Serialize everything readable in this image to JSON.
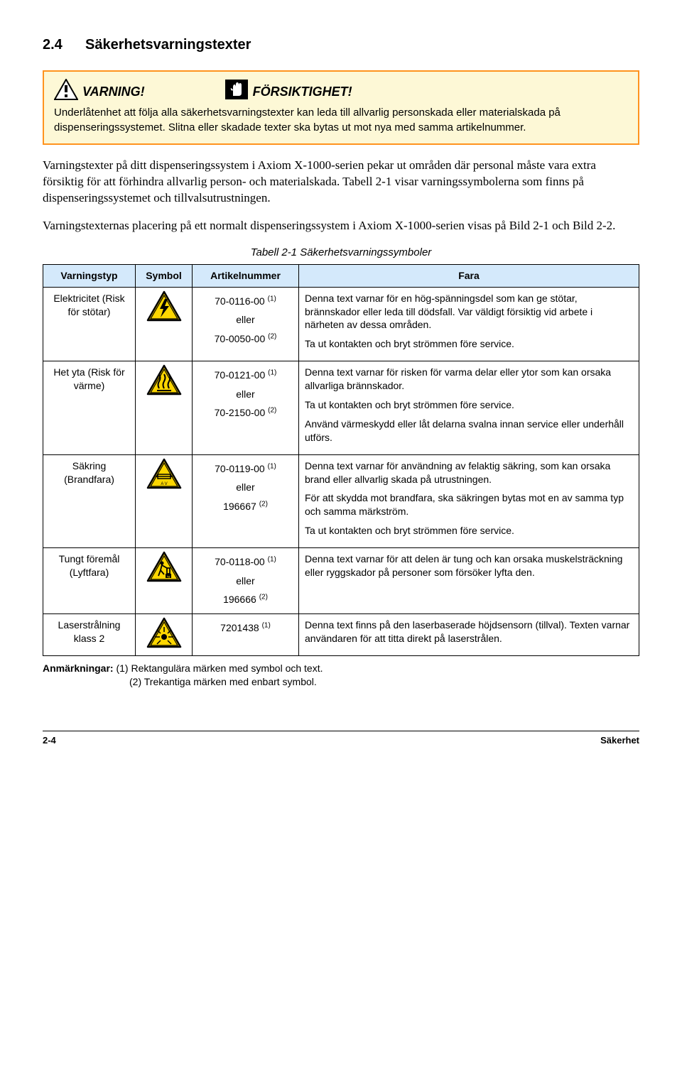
{
  "heading": {
    "number": "2.4",
    "title": "Säkerhetsvarningstexter"
  },
  "alert": {
    "warning_label": "VARNING!",
    "caution_label": "FÖRSIKTIGHET!",
    "body": "Underlåtenhet att följa alla säkerhetsvarningstexter kan leda till allvarlig personskada eller materialskada på dispenseringssystemet. Slitna eller skadade texter ska bytas ut mot nya med samma artikelnummer."
  },
  "paragraphs": {
    "p1": "Varningstexter på ditt dispenseringssystem i Axiom X-1000-serien pekar ut områden där personal måste vara extra försiktig för att förhindra allvarlig person- och materialskada. Tabell 2-1 visar varningssymbolerna som finns på dispenseringssystemet och tillvalsutrustningen.",
    "p2": "Varningstexternas placering på ett normalt dispenseringssystem i Axiom X-1000-serien visas på Bild 2-1 och Bild 2-2."
  },
  "table": {
    "caption": "Tabell 2-1   Säkerhetsvarningssymboler",
    "headers": {
      "c1": "Varningstyp",
      "c2": "Symbol",
      "c3": "Artikelnummer",
      "c4": "Fara"
    },
    "eller": "eller",
    "rows": [
      {
        "type": "Elektricitet (Risk för stötar)",
        "icon": "bolt",
        "art1": "70-0116-00",
        "sup1": "(1)",
        "art2": "70-0050-00",
        "sup2": "(2)",
        "fara": [
          "Denna text varnar för en hög-spänningsdel som kan ge stötar, brännskador eller leda till dödsfall. Var väldigt försiktig vid arbete i närheten av dessa områden.",
          "Ta ut kontakten och bryt strömmen före service."
        ]
      },
      {
        "type": "Het yta (Risk för värme)",
        "icon": "heat",
        "art1": "70-0121-00",
        "sup1": "(1)",
        "art2": "70-2150-00",
        "sup2": "(2)",
        "fara": [
          "Denna text varnar för risken för varma delar eller ytor som kan orsaka allvarliga brännskador.",
          "Ta ut kontakten och bryt strömmen före service.",
          "Använd värmeskydd eller låt delarna svalna innan service eller underhåll utförs."
        ]
      },
      {
        "type": "Säkring (Brandfara)",
        "icon": "fuse",
        "art1": "70-0119-00",
        "sup1": "(1)",
        "art2": "196667",
        "sup2": "(2)",
        "fara": [
          "Denna text varnar för användning av felaktig säkring, som kan orsaka brand eller allvarlig skada på utrustningen.",
          "För att skydda mot brandfara, ska säkringen bytas mot en av samma typ och samma märkström.",
          "Ta ut kontakten och bryt strömmen före service."
        ]
      },
      {
        "type": "Tungt föremål (Lyftfara)",
        "icon": "lift",
        "art1": "70-0118-00",
        "sup1": "(1)",
        "art2": "196666",
        "sup2": "(2)",
        "fara": [
          "Denna text varnar för att delen är tung och kan orsaka muskelsträckning eller ryggskador på personer som försöker lyfta den."
        ]
      },
      {
        "type": "Laserstrålning klass 2",
        "icon": "laser",
        "art1": "7201438",
        "sup1": "(1)",
        "art2": "",
        "sup2": "",
        "fara": [
          "Denna text finns på den laserbaserade höjdsensorn (tillval). Texten varnar användaren för att titta direkt på laserstrålen."
        ]
      }
    ]
  },
  "notes": {
    "lead": "Anmärkningar:",
    "n1": "(1) Rektangulära märken med symbol och text.",
    "n2": "(2) Trekantiga märken med enbart symbol."
  },
  "footer": {
    "left": "2-4",
    "right": "Säkerhet"
  },
  "colors": {
    "alert_border": "#ff931e",
    "alert_bg": "#fdf8d6",
    "th_bg": "#d4e9fb",
    "tri_fill": "#fdd600",
    "tri_stroke": "#000000"
  }
}
